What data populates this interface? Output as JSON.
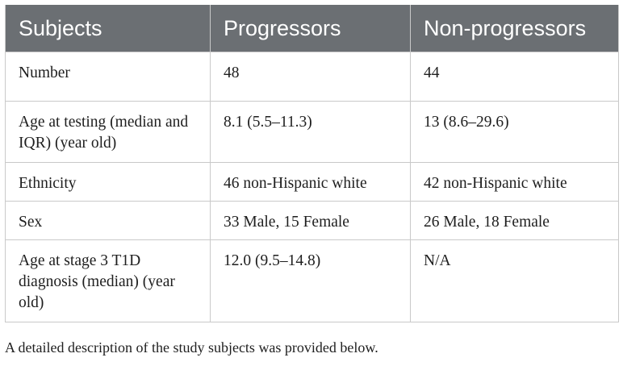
{
  "table": {
    "headers": [
      "Subjects",
      "Progressors",
      "Non-progressors"
    ],
    "rows": [
      [
        "Number",
        "48",
        "44"
      ],
      [
        "Age at testing (median and IQR) (year old)",
        "8.1 (5.5–11.3)",
        "13 (8.6–29.6)"
      ],
      [
        "Ethnicity",
        "46 non-Hispanic white",
        "42 non-Hispanic white"
      ],
      [
        "Sex",
        "33 Male, 15 Female",
        "26 Male, 18 Female"
      ],
      [
        "Age at stage 3 T1D diagnosis (median) (year old)",
        "12.0 (9.5–14.8)",
        "N/A"
      ]
    ]
  },
  "footnote": "A detailed description of the study subjects was provided below.",
  "colors": {
    "header_background": "#6b6f73",
    "header_text": "#ffffff",
    "border": "#c9c9c9",
    "body_text": "#1e1e1e"
  }
}
